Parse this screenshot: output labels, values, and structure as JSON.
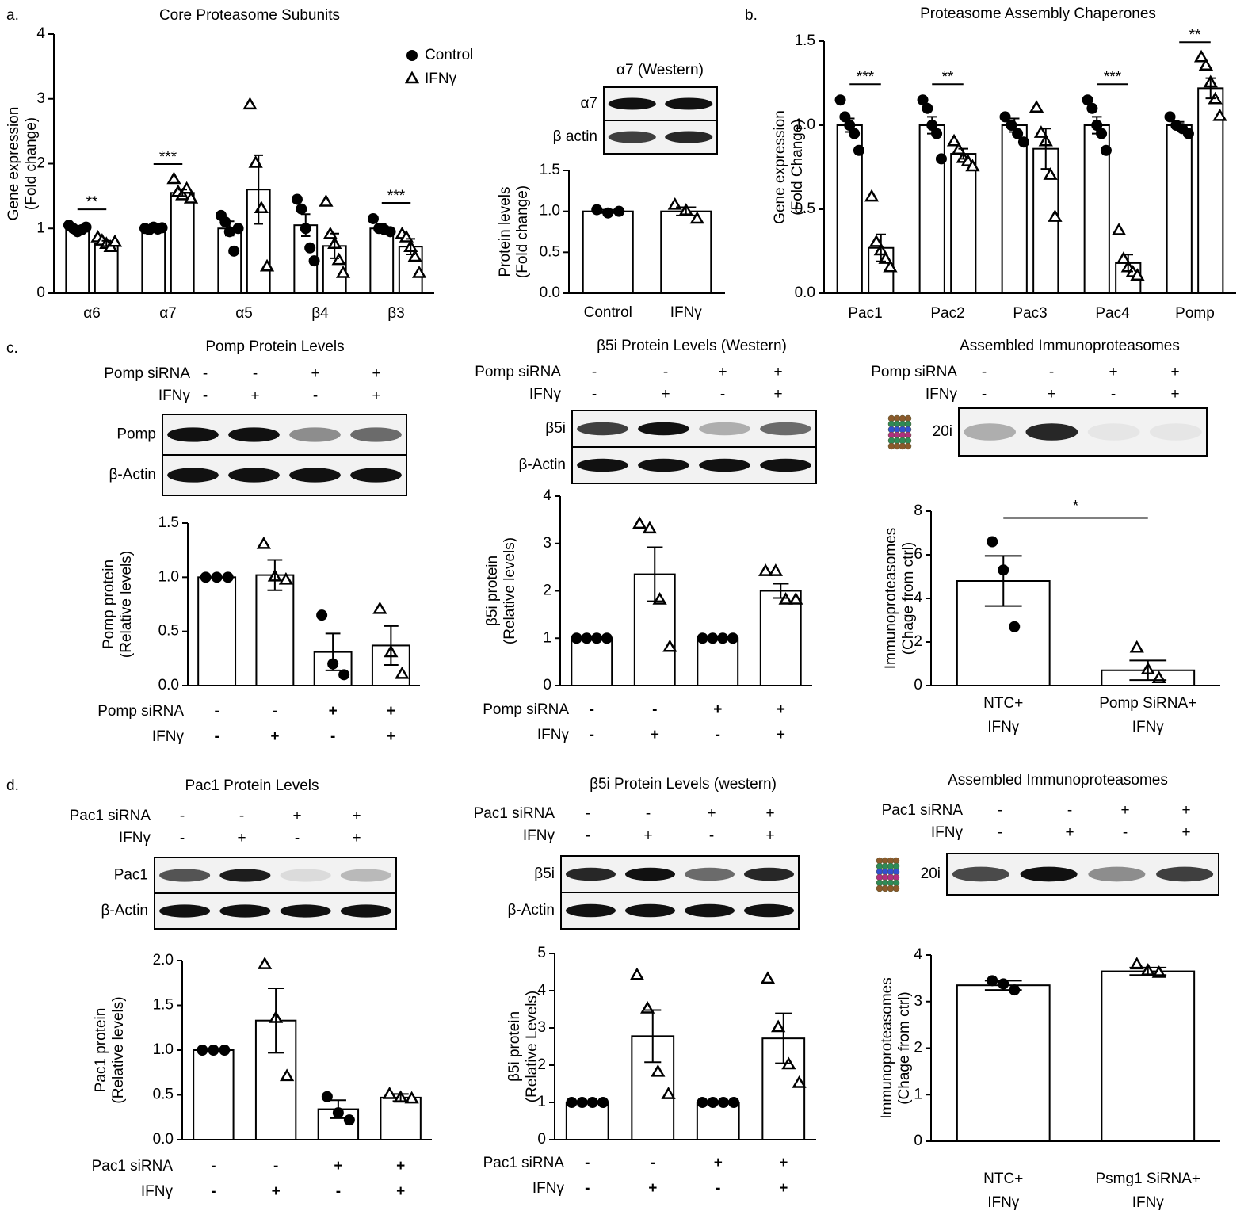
{
  "chart_data": [
    {
      "type": "bar",
      "panel": "a.",
      "title": "Core Proteasome Subunits",
      "y_label": "Gene expression",
      "y_label_sub": "(Fold change)",
      "bar_color": "#ffffff",
      "marker_color": "#000000",
      "legend": "top-right",
      "categories": [
        "α6",
        "α7",
        "α5",
        "β4",
        "β3"
      ],
      "series": [
        {
          "name": "Control",
          "marker": "circle",
          "values": [
            1.0,
            1.0,
            1.0,
            1.05,
            1.0
          ],
          "errors": [
            0.04,
            0.03,
            0.11,
            0.17,
            0.07
          ],
          "points": [
            [
              1.05,
              1.0,
              0.95,
              0.98,
              1.02
            ],
            [
              1.0,
              0.98,
              1.02,
              0.99,
              1.01
            ],
            [
              1.2,
              1.1,
              0.95,
              0.65,
              1.0
            ],
            [
              1.45,
              1.3,
              1.0,
              0.7,
              0.5
            ],
            [
              1.15,
              1.0,
              0.98,
              0.95
            ]
          ]
        },
        {
          "name": "IFNγ",
          "marker": "triangle",
          "values": [
            0.77,
            1.55,
            1.6,
            0.73,
            0.72
          ],
          "errors": [
            0.04,
            0.05,
            0.53,
            0.19,
            0.12
          ],
          "points": [
            [
              0.85,
              0.8,
              0.75,
              0.7,
              0.78
            ],
            [
              1.75,
              1.55,
              1.5,
              1.6,
              1.45
            ],
            [
              2.9,
              2.0,
              1.3,
              0.4
            ],
            [
              1.4,
              0.9,
              0.75,
              0.5,
              0.3
            ],
            [
              0.9,
              0.85,
              0.7,
              0.55,
              0.3
            ]
          ]
        }
      ],
      "significance": [
        "**",
        "***",
        null,
        null,
        "***"
      ],
      "ylim": [
        0,
        4
      ],
      "yticks": [
        0,
        1,
        2,
        3,
        4
      ]
    },
    {
      "type": "bar",
      "title": "α7 (Western)",
      "blot_rows": [
        "α7",
        "β actin"
      ],
      "y_label": "Protein levels",
      "y_label_sub": "(Fold change)",
      "bar_color": "#ffffff",
      "marker_color": "#000000",
      "categories": [
        "Control",
        "IFNγ"
      ],
      "values": [
        1.0,
        1.0
      ],
      "errors": [
        0.02,
        0.05
      ],
      "markers": [
        "circle",
        "triangle"
      ],
      "points": [
        [
          1.02,
          0.98,
          1.0
        ],
        [
          1.07,
          1.0,
          0.9
        ]
      ],
      "ylim": [
        0,
        1.5
      ],
      "yticks": [
        {
          "value": 0,
          "label": "0.0"
        },
        0.5,
        {
          "value": 1,
          "label": "1.0"
        },
        1.5
      ]
    },
    {
      "type": "bar",
      "panel": "b.",
      "title": "Proteasome Assembly Chaperones",
      "y_label": "Gene expression",
      "y_label_sub": "(Fold Change)",
      "bar_color": "#ffffff",
      "marker_color": "#000000",
      "categories": [
        "Pac1",
        "Pac2",
        "Pac3",
        "Pac4",
        "Pomp"
      ],
      "series": [
        {
          "name": "Control",
          "marker": "circle",
          "values": [
            1.0,
            1.0,
            1.0,
            1.0,
            1.0
          ],
          "errors": [
            0.04,
            0.05,
            0.04,
            0.05,
            0.02
          ],
          "points": [
            [
              1.15,
              1.05,
              1.0,
              0.95,
              0.85
            ],
            [
              1.15,
              1.1,
              1.0,
              0.95,
              0.8
            ],
            [
              1.05,
              1.0,
              0.95,
              0.9
            ],
            [
              1.15,
              1.1,
              1.0,
              0.95,
              0.85
            ],
            [
              1.05,
              1.0,
              0.98,
              0.95
            ]
          ]
        },
        {
          "name": "IFNγ",
          "marker": "triangle",
          "values": [
            0.27,
            0.83,
            0.86,
            0.18,
            1.22
          ],
          "errors": [
            0.08,
            0.03,
            0.12,
            0.05,
            0.06
          ],
          "points": [
            [
              0.57,
              0.3,
              0.25,
              0.2,
              0.15
            ],
            [
              0.9,
              0.85,
              0.8,
              0.78,
              0.75
            ],
            [
              1.1,
              0.95,
              0.9,
              0.7,
              0.45
            ],
            [
              0.37,
              0.2,
              0.15,
              0.12,
              0.1
            ],
            [
              1.4,
              1.35,
              1.25,
              1.15,
              1.05
            ]
          ]
        }
      ],
      "significance": [
        "***",
        "**",
        null,
        "***",
        "**"
      ],
      "ylim": [
        0,
        1.5
      ],
      "yticks": [
        {
          "value": 0,
          "label": "0.0"
        },
        0.5,
        {
          "value": 1,
          "label": "1.0"
        },
        1.5
      ]
    },
    {
      "type": "bar",
      "panel": "c.",
      "title": "Pomp Protein Levels",
      "conditions": [
        {
          "label": "Pomp siRNA",
          "signs": [
            "-",
            "-",
            "+",
            "+"
          ]
        },
        {
          "label": "IFNγ",
          "signs": [
            "-",
            "+",
            "-",
            "+"
          ]
        }
      ],
      "blot_rows": [
        "Pomp",
        "β-Actin"
      ],
      "y_label": "Pomp protein",
      "y_label_sub": "(Relative levels)",
      "bar_color": "#ffffff",
      "marker_color": "#000000",
      "values": [
        1.0,
        1.02,
        0.31,
        0.37
      ],
      "errors": [
        0,
        0.14,
        0.17,
        0.18
      ],
      "markers": [
        "circle",
        "triangle",
        "circle",
        "triangle"
      ],
      "points": [
        [
          1.0,
          1.0,
          1.0
        ],
        [
          1.3,
          1.0,
          0.97
        ],
        [
          0.65,
          0.2,
          0.1
        ],
        [
          0.7,
          0.3,
          0.1
        ]
      ],
      "ylim": [
        0,
        1.5
      ],
      "yticks": [
        {
          "value": 0,
          "label": "0.0"
        },
        0.5,
        {
          "value": 1,
          "label": "1.0"
        },
        1.5
      ]
    },
    {
      "type": "bar",
      "title": "β5i Protein Levels (Western)",
      "conditions": [
        {
          "label": "Pomp siRNA",
          "signs": [
            "-",
            "-",
            "+",
            "+"
          ]
        },
        {
          "label": "IFNγ",
          "signs": [
            "-",
            "+",
            "-",
            "+"
          ]
        }
      ],
      "blot_rows": [
        "β5i",
        "β-Actin"
      ],
      "y_label": "β5i protein",
      "y_label_sub": "(Relative levels)",
      "bar_color": "#ffffff",
      "marker_color": "#000000",
      "values": [
        1.0,
        2.35,
        1.0,
        2.0
      ],
      "errors": [
        0,
        0.57,
        0,
        0.15
      ],
      "markers": [
        "circle",
        "triangle",
        "circle",
        "triangle"
      ],
      "points": [
        [
          1.0,
          1.0,
          1.0,
          1.0
        ],
        [
          3.4,
          3.3,
          1.8,
          0.8
        ],
        [
          1.0,
          1.0,
          1.0,
          1.0
        ],
        [
          2.4,
          2.4,
          1.8,
          1.8
        ]
      ],
      "ylim": [
        0,
        4
      ],
      "yticks": [
        0,
        1,
        2,
        3,
        4
      ]
    },
    {
      "type": "bar",
      "title": "Assembled Immunoproteasomes",
      "conditions": [
        {
          "label": "Pomp siRNA",
          "signs": [
            "-",
            "-",
            "+",
            "+"
          ]
        },
        {
          "label": "IFNγ",
          "signs": [
            "-",
            "+",
            "-",
            "+"
          ]
        }
      ],
      "blot_rows": [
        "20i"
      ],
      "y_label": "Immunoproteasomes",
      "y_label_sub": "(Chage from ctrl)",
      "bar_color": "#ffffff",
      "marker_color": "#000000",
      "categories": [
        [
          "NTC+",
          "IFNγ"
        ],
        [
          "Pomp SiRNA+",
          "IFNγ"
        ]
      ],
      "values": [
        4.8,
        0.7
      ],
      "errors": [
        1.15,
        0.45
      ],
      "markers": [
        "circle",
        "triangle"
      ],
      "points": [
        [
          6.6,
          5.3,
          2.7
        ],
        [
          1.7,
          0.7,
          0.3
        ]
      ],
      "significance_label": "*",
      "ylim": [
        0,
        8
      ],
      "yticks": [
        0,
        2,
        4,
        6,
        8
      ]
    },
    {
      "type": "bar",
      "panel": "d.",
      "title": "Pac1 Protein Levels",
      "conditions": [
        {
          "label": "Pac1 siRNA",
          "signs": [
            "-",
            "-",
            "+",
            "+"
          ]
        },
        {
          "label": "IFNγ",
          "signs": [
            "-",
            "+",
            "-",
            "+"
          ]
        }
      ],
      "blot_rows": [
        "Pac1",
        "β-Actin"
      ],
      "y_label": "Pac1 protein",
      "y_label_sub": "(Relative levels)",
      "bar_color": "#ffffff",
      "marker_color": "#000000",
      "values": [
        1.0,
        1.33,
        0.34,
        0.47
      ],
      "errors": [
        0,
        0.36,
        0.1,
        0.04
      ],
      "markers": [
        "circle",
        "triangle",
        "circle",
        "triangle"
      ],
      "points": [
        [
          1.0,
          1.0,
          1.0
        ],
        [
          1.95,
          1.35,
          0.7
        ],
        [
          0.48,
          0.3,
          0.22
        ],
        [
          0.5,
          0.46,
          0.45
        ]
      ],
      "ylim": [
        0,
        2
      ],
      "yticks": [
        {
          "value": 0,
          "label": "0.0"
        },
        0.5,
        {
          "value": 1,
          "label": "1.0"
        },
        1.5,
        {
          "value": 2,
          "label": "2.0"
        }
      ]
    },
    {
      "type": "bar",
      "title": "β5i Protein Levels (western)",
      "conditions": [
        {
          "label": "Pac1 siRNA",
          "signs": [
            "-",
            "-",
            "+",
            "+"
          ]
        },
        {
          "label": "IFNγ",
          "signs": [
            "-",
            "+",
            "-",
            "+"
          ]
        }
      ],
      "blot_rows": [
        "β5i",
        "β-Actin"
      ],
      "y_label": "β5i protein",
      "y_label_sub": "(Relative Levels)",
      "bar_color": "#ffffff",
      "marker_color": "#000000",
      "values": [
        1.0,
        2.78,
        1.0,
        2.72
      ],
      "errors": [
        0,
        0.7,
        0,
        0.67
      ],
      "markers": [
        "circle",
        "triangle",
        "circle",
        "triangle"
      ],
      "points": [
        [
          1.0,
          1.0,
          1.0,
          1.0
        ],
        [
          4.4,
          3.5,
          1.8,
          1.2
        ],
        [
          1.0,
          1.0,
          1.0,
          1.0
        ],
        [
          4.3,
          3.0,
          2.0,
          1.5
        ]
      ],
      "ylim": [
        0,
        5
      ],
      "yticks": [
        0,
        1,
        2,
        3,
        4,
        5
      ]
    },
    {
      "type": "bar",
      "title": "Assembled Immunoproteasomes",
      "conditions": [
        {
          "label": "Pac1 siRNA",
          "signs": [
            "-",
            "-",
            "+",
            "+"
          ]
        },
        {
          "label": "IFNγ",
          "signs": [
            "-",
            "+",
            "-",
            "+"
          ]
        }
      ],
      "blot_rows": [
        "20i"
      ],
      "y_label": "Immunoproteasomes",
      "y_label_sub": "(Chage from ctrl)",
      "bar_color": "#ffffff",
      "marker_color": "#000000",
      "categories": [
        [
          "NTC+",
          "IFNγ"
        ],
        [
          "Psmg1 SiRNA+",
          "IFNγ"
        ]
      ],
      "values": [
        3.35,
        3.65
      ],
      "errors": [
        0.1,
        0.08
      ],
      "markers": [
        "circle",
        "triangle"
      ],
      "points": [
        [
          3.45,
          3.38,
          3.25
        ],
        [
          3.78,
          3.65,
          3.6
        ]
      ],
      "ylim": [
        0,
        4
      ],
      "yticks": [
        0,
        1,
        2,
        3,
        4
      ]
    }
  ]
}
